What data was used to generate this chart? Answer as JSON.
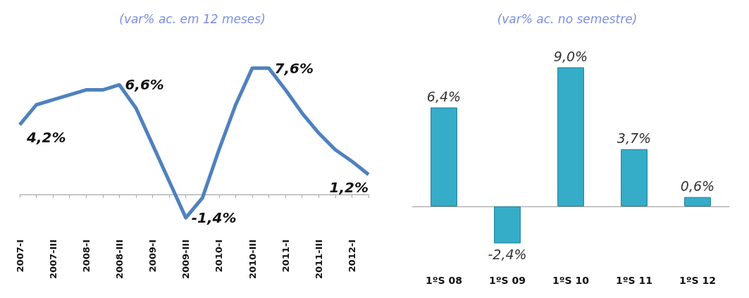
{
  "chart_data": [
    {
      "type": "line",
      "title": "(var% ac. em 12 meses)",
      "categories": [
        "2007-I",
        null,
        "2007-III",
        null,
        "2008-I",
        null,
        "2008-III",
        null,
        "2009-I",
        null,
        "2009-III",
        null,
        "2010-I",
        null,
        "2010-III",
        null,
        "2011-I",
        null,
        "2011-III",
        null,
        "2012-I",
        null
      ],
      "series": [
        {
          "color": "#4f81bd",
          "values": [
            4.2,
            5.4,
            5.7,
            6.0,
            6.3,
            6.3,
            6.6,
            5.2,
            3.0,
            0.8,
            -1.4,
            -0.2,
            2.7,
            5.4,
            7.6,
            7.6,
            6.3,
            4.9,
            3.7,
            2.7,
            2.0,
            1.2
          ],
          "value_labels": [
            "4,2%",
            null,
            null,
            null,
            null,
            null,
            "6,6%",
            null,
            null,
            null,
            "-1,4%",
            null,
            null,
            null,
            null,
            "7,6%",
            null,
            null,
            null,
            null,
            null,
            "1,2%"
          ]
        }
      ],
      "marker": "none",
      "grid": false,
      "tick_labels": "x"
    },
    {
      "type": "bar",
      "title": "(var% ac. no semestre)",
      "categories": [
        "1ºS 08",
        "1ºS 09",
        "1ºS 10",
        "1ºS 11",
        "1ºS 12"
      ],
      "series": [
        {
          "color": "#35acc8",
          "values": [
            6.4,
            -2.4,
            9.0,
            3.7,
            0.6
          ],
          "value_labels": [
            "6,4%",
            "-2,4%",
            "9,0%",
            "3,7%",
            "0,6%"
          ]
        }
      ],
      "grid": false,
      "tick_labels": "x"
    }
  ]
}
